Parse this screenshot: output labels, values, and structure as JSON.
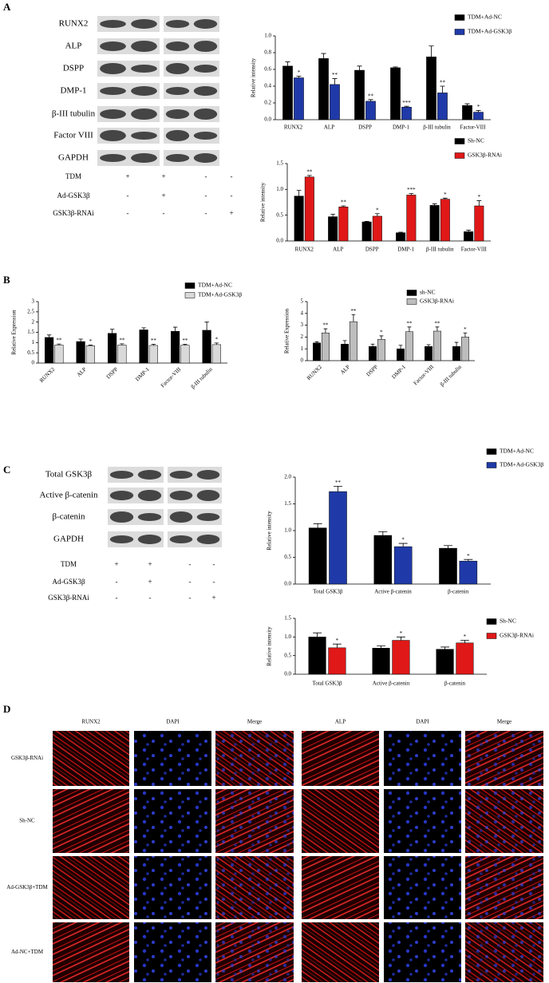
{
  "panel_labels": [
    "A",
    "B",
    "C",
    "D"
  ],
  "blots_a": {
    "rows": [
      "RUNX2",
      "ALP",
      "DSPP",
      "DMP-1",
      "β-III tubulin",
      "Factor VIII",
      "GAPDH"
    ],
    "conditions": [
      {
        "label": "TDM",
        "marks": [
          "+",
          "+",
          "-",
          "-"
        ]
      },
      {
        "label": "Ad-GSK3β",
        "marks": [
          "-",
          "+",
          "-",
          "-"
        ]
      },
      {
        "label": "GSK3β-RNAi",
        "marks": [
          "-",
          "-",
          "-",
          "+"
        ]
      }
    ]
  },
  "blots_c": {
    "rows": [
      "Total GSK3β",
      "Active β-catenin",
      "β-catenin",
      "GAPDH"
    ],
    "conditions": [
      {
        "label": "TDM",
        "marks": [
          "+",
          "+",
          "-",
          "-"
        ]
      },
      {
        "label": "Ad-GSK3β",
        "marks": [
          "-",
          "+",
          "-",
          "-"
        ]
      },
      {
        "label": "GSK3β-RNAi",
        "marks": [
          "-",
          "-",
          "-",
          "+"
        ]
      }
    ]
  },
  "chart_data": [
    {
      "type": "bar",
      "y_label": "Relative intensity",
      "categories": [
        "RUNX2",
        "ALP",
        "DSPP",
        "DMP-1",
        "β-III tubulin",
        "Factor-VIII"
      ],
      "ylim": [
        0,
        1.0
      ],
      "yticks": [
        {
          "value": 0,
          "label": "0.0"
        },
        0.2,
        0.4,
        0.6,
        0.8,
        {
          "value": 1.0,
          "label": "1.0"
        }
      ],
      "series": [
        {
          "name": "TDM+Ad-NC",
          "color": "#000000",
          "values": [
            0.64,
            0.73,
            0.59,
            0.62,
            0.75,
            0.17
          ],
          "errors": [
            0.05,
            0.06,
            0.05,
            0.01,
            0.13,
            0.02
          ]
        },
        {
          "name": "TDM+Ad-GSK3β",
          "color": "#1f3aa8",
          "values": [
            0.5,
            0.42,
            0.22,
            0.15,
            0.32,
            0.09
          ],
          "errors": [
            0.02,
            0.07,
            0.02,
            0.01,
            0.08,
            0.02
          ],
          "annotations": [
            "*",
            "**",
            "**",
            "***",
            "**",
            "*"
          ]
        }
      ]
    },
    {
      "type": "bar",
      "y_label": "Relative intensity",
      "categories": [
        "RUNX2",
        "ALP",
        "DSPP",
        "DMP-1",
        "β-III tubulin",
        "Factor-VIII"
      ],
      "ylim": [
        0,
        1.5
      ],
      "yticks": [
        {
          "value": 0,
          "label": "0.0"
        },
        0.5,
        {
          "value": 1.0,
          "label": "1.0"
        },
        1.5
      ],
      "series": [
        {
          "name": "Sh-NC",
          "color": "#000000",
          "values": [
            0.87,
            0.47,
            0.37,
            0.16,
            0.69,
            0.18
          ],
          "errors": [
            0.11,
            0.05,
            0.01,
            0.01,
            0.03,
            0.03
          ]
        },
        {
          "name": "GSK3β-RNAi",
          "color": "#e01818",
          "values": [
            1.24,
            0.66,
            0.48,
            0.89,
            0.81,
            0.68
          ],
          "errors": [
            0.03,
            0.02,
            0.05,
            0.03,
            0.02,
            0.1
          ],
          "annotations": [
            "**",
            "**",
            "*",
            "***",
            "*",
            "*"
          ]
        }
      ]
    },
    {
      "type": "bar",
      "y_label": "Relative Expression",
      "categories": [
        "RUNX2",
        "ALP",
        "DSPP",
        "DMP-1",
        "Factor-VIII",
        "β-III tubulin"
      ],
      "ylim": [
        0,
        3
      ],
      "yticks": [
        0,
        0.5,
        1,
        1.5,
        2,
        2.5,
        3
      ],
      "series": [
        {
          "name": "TDM+Ad-NC",
          "color": "#000000",
          "values": [
            1.25,
            1.05,
            1.45,
            1.62,
            1.55,
            1.6
          ],
          "errors": [
            0.12,
            0.12,
            0.2,
            0.1,
            0.2,
            0.4
          ]
        },
        {
          "name": "TDM+Ad-GSK3β",
          "color": "#d9d9d9",
          "values": [
            0.88,
            0.85,
            0.88,
            0.86,
            0.87,
            0.9
          ],
          "errors": [
            0.05,
            0.03,
            0.06,
            0.06,
            0.05,
            0.08
          ],
          "annotations": [
            "**",
            "*",
            "**",
            "**",
            "**",
            "*"
          ]
        }
      ]
    },
    {
      "type": "bar",
      "y_label": "Relative Expression",
      "categories": [
        "RUNX2",
        "ALP",
        "DSPP",
        "DMP-1",
        "Factor-VIII",
        "β-III tubulin"
      ],
      "ylim": [
        0,
        5
      ],
      "yticks": [
        0,
        1,
        2,
        3,
        4,
        5
      ],
      "series": [
        {
          "name": "sh-NC",
          "color": "#000000",
          "values": [
            1.5,
            1.4,
            1.2,
            1.0,
            1.2,
            1.2
          ],
          "errors": [
            0.1,
            0.3,
            0.2,
            0.3,
            0.15,
            0.35
          ]
        },
        {
          "name": "GSK3β-RNAi",
          "color": "#bdbdbd",
          "values": [
            2.35,
            3.3,
            1.8,
            2.45,
            2.5,
            2.0
          ],
          "errors": [
            0.35,
            0.6,
            0.3,
            0.4,
            0.35,
            0.35
          ],
          "annotations": [
            "**",
            "**",
            "*",
            "**",
            "**",
            "*"
          ]
        }
      ]
    },
    {
      "type": "bar",
      "y_label": "Relative intensity",
      "categories": [
        "Total GSK3β",
        "Active β-catenin",
        "β-catenin"
      ],
      "ylim": [
        0,
        2.0
      ],
      "yticks": [
        {
          "value": 0,
          "label": "0.0"
        },
        0.5,
        {
          "value": 1.0,
          "label": "1.0"
        },
        1.5,
        {
          "value": 2.0,
          "label": "2.0"
        }
      ],
      "series": [
        {
          "name": "TDM+Ad-NC",
          "color": "#000000",
          "values": [
            1.05,
            0.91,
            0.67
          ],
          "errors": [
            0.08,
            0.07,
            0.05
          ]
        },
        {
          "name": "TDM+Ad-GSK3β",
          "color": "#1f3aa8",
          "values": [
            1.73,
            0.7,
            0.43
          ],
          "errors": [
            0.1,
            0.06,
            0.03
          ],
          "annotations": [
            "**",
            "*",
            "*"
          ]
        }
      ]
    },
    {
      "type": "bar",
      "y_label": "Relative intensity",
      "categories": [
        "Total GSK3β",
        "Active β-catenin",
        "β-catenin"
      ],
      "ylim": [
        0,
        1.5
      ],
      "yticks": [
        {
          "value": 0,
          "label": "0.0"
        },
        0.5,
        {
          "value": 1.0,
          "label": "1.0"
        },
        1.5
      ],
      "series": [
        {
          "name": "Sh-NC",
          "color": "#000000",
          "values": [
            1.0,
            0.7,
            0.67
          ],
          "errors": [
            0.11,
            0.06,
            0.06
          ]
        },
        {
          "name": "GSK3β-RNAi",
          "color": "#e01818",
          "values": [
            0.71,
            0.91,
            0.84
          ],
          "errors": [
            0.1,
            0.09,
            0.07
          ],
          "annotations": [
            "*",
            "*",
            "*"
          ]
        }
      ]
    }
  ],
  "if_panel": {
    "columns": [
      "RUNX2",
      "DAPI",
      "Merge",
      "ALP",
      "DAPI",
      "Merge"
    ],
    "rows": [
      "GSK3β-RNAi",
      "Sh-NC",
      "Ad-GSK3β+TDM",
      "Ad-NC+TDM"
    ]
  }
}
